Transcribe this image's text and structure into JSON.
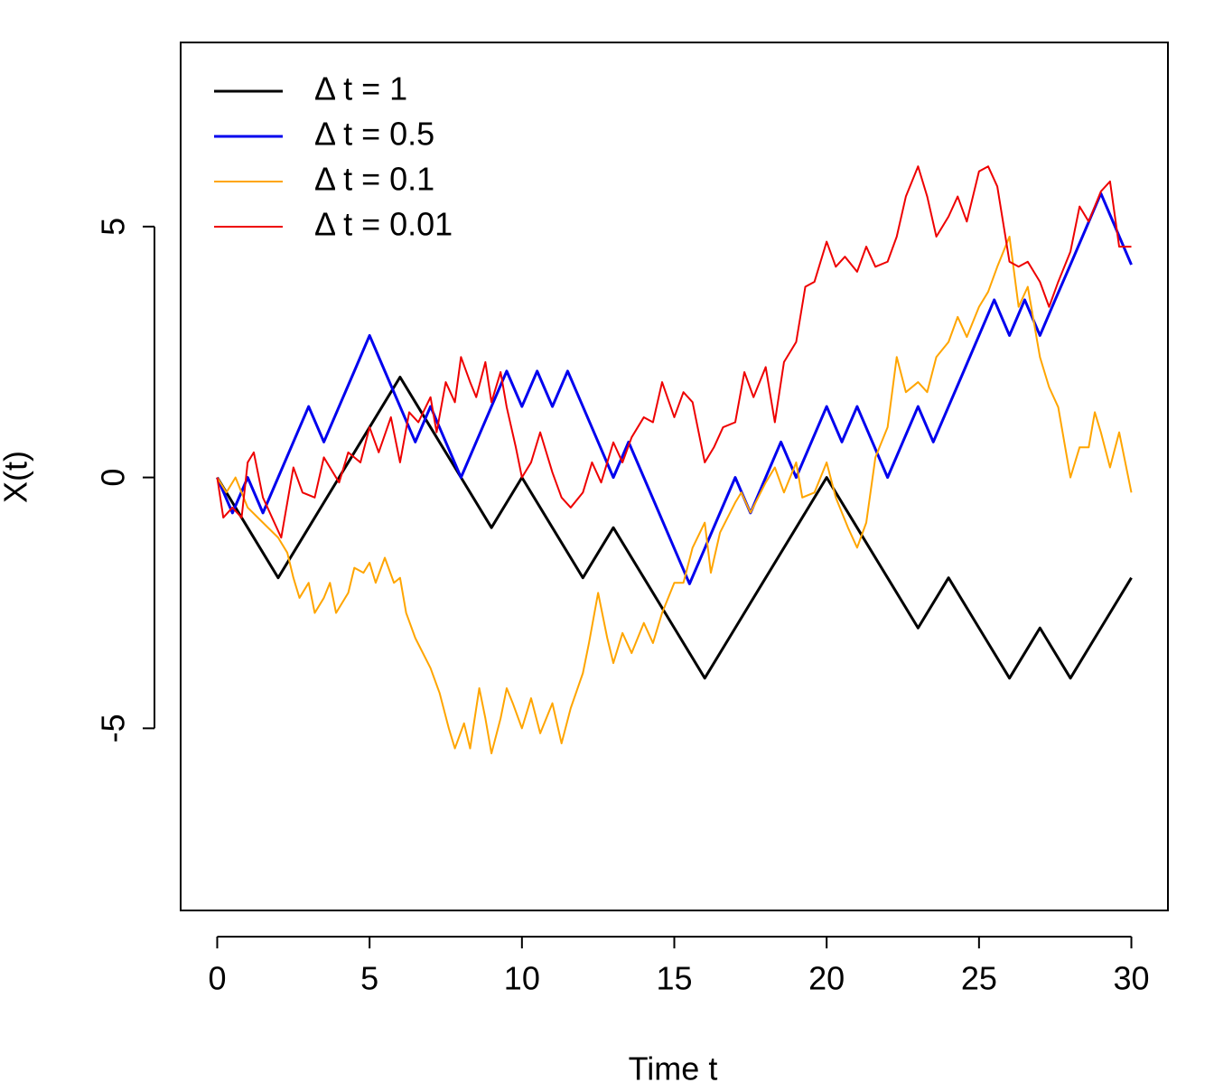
{
  "chart_data": {
    "type": "line",
    "xlabel": "Time t",
    "ylabel": "X(t)",
    "xlim": [
      -1.2,
      31.2
    ],
    "ylim": [
      -8.63,
      8.67
    ],
    "xticks": [
      0,
      5,
      10,
      15,
      20,
      25,
      30
    ],
    "yticks": [
      -5,
      0,
      5
    ],
    "legend": "top-left",
    "series": [
      {
        "name": "Δ t = 1",
        "color": "#000000",
        "x": [
          0,
          1,
          2,
          3,
          4,
          5,
          6,
          7,
          8,
          9,
          10,
          11,
          12,
          13,
          14,
          15,
          16,
          17,
          18,
          19,
          20,
          21,
          22,
          23,
          24,
          25,
          26,
          27,
          28,
          29,
          30
        ],
        "values": [
          0,
          -1,
          -2,
          -1,
          0,
          1,
          2,
          1,
          0,
          -1,
          0,
          -1,
          -2,
          -1,
          -2,
          -3,
          -4,
          -3,
          -2,
          -1,
          0,
          -1,
          -2,
          -3,
          -2,
          -3,
          -4,
          -3,
          -4,
          -3,
          -2
        ]
      },
      {
        "name": "Δ t = 0.5",
        "color": "#0000ee",
        "x": [
          0,
          0.5,
          1,
          1.5,
          2,
          2.5,
          3,
          3.5,
          4,
          4.5,
          5,
          5.5,
          6,
          6.5,
          7,
          7.5,
          8,
          8.5,
          9,
          9.5,
          10,
          10.5,
          11,
          11.5,
          12,
          12.5,
          13,
          13.5,
          14,
          14.5,
          15,
          15.5,
          16,
          16.5,
          17,
          17.5,
          18,
          18.5,
          19,
          19.5,
          20,
          20.5,
          21,
          21.5,
          22,
          22.5,
          23,
          23.5,
          24,
          24.5,
          25,
          25.5,
          26,
          26.5,
          27,
          27.5,
          28,
          28.5,
          29,
          29.5,
          30
        ],
        "values": [
          0,
          -0.707,
          0,
          -0.707,
          0,
          0.707,
          1.414,
          0.707,
          1.414,
          2.12,
          2.83,
          2.12,
          1.414,
          0.707,
          1.414,
          0.707,
          0,
          0.707,
          1.414,
          2.12,
          1.414,
          2.12,
          1.414,
          2.12,
          1.414,
          0.707,
          0,
          0.707,
          0,
          -0.707,
          -1.414,
          -2.12,
          -1.414,
          -0.707,
          0,
          -0.707,
          0,
          0.707,
          0,
          0.707,
          1.414,
          0.707,
          1.414,
          0.707,
          0,
          0.707,
          1.414,
          0.707,
          1.414,
          2.12,
          2.83,
          3.54,
          2.83,
          3.54,
          2.83,
          3.54,
          4.24,
          4.95,
          5.66,
          4.95,
          4.24
        ]
      },
      {
        "name": "Δ t = 0.1",
        "color": "#ffa500",
        "x": [
          0,
          0.3,
          0.6,
          1,
          1.5,
          2,
          2.3,
          2.5,
          2.7,
          3,
          3.2,
          3.5,
          3.7,
          3.9,
          4.3,
          4.5,
          4.8,
          5,
          5.2,
          5.5,
          5.8,
          6,
          6.2,
          6.5,
          7,
          7.3,
          7.6,
          7.8,
          8.1,
          8.3,
          8.6,
          8.8,
          9,
          9.3,
          9.5,
          9.7,
          10,
          10.3,
          10.6,
          11,
          11.3,
          11.6,
          12,
          12.2,
          12.5,
          12.8,
          13,
          13.3,
          13.6,
          14,
          14.3,
          14.6,
          15,
          15.3,
          15.6,
          16,
          16.2,
          16.5,
          17,
          17.2,
          17.5,
          18,
          18.3,
          18.6,
          19,
          19.2,
          19.6,
          20,
          20.3,
          20.7,
          21,
          21.3,
          21.6,
          22,
          22.3,
          22.6,
          23,
          23.3,
          23.6,
          24,
          24.3,
          24.6,
          25,
          25.3,
          25.6,
          26,
          26.3,
          26.6,
          27,
          27.3,
          27.6,
          28,
          28.3,
          28.6,
          28.8,
          29,
          29.3,
          29.6,
          29.8,
          30
        ],
        "values": [
          0,
          -0.3,
          0,
          -0.6,
          -0.9,
          -1.2,
          -1.5,
          -2.0,
          -2.4,
          -2.1,
          -2.7,
          -2.4,
          -2.1,
          -2.7,
          -2.3,
          -1.8,
          -1.9,
          -1.7,
          -2.1,
          -1.6,
          -2.1,
          -2.0,
          -2.7,
          -3.2,
          -3.8,
          -4.3,
          -5.0,
          -5.4,
          -4.9,
          -5.4,
          -4.2,
          -4.8,
          -5.5,
          -4.8,
          -4.2,
          -4.5,
          -5.0,
          -4.4,
          -5.1,
          -4.5,
          -5.3,
          -4.6,
          -3.9,
          -3.3,
          -2.3,
          -3.2,
          -3.7,
          -3.1,
          -3.5,
          -2.9,
          -3.3,
          -2.7,
          -2.1,
          -2.1,
          -1.4,
          -0.9,
          -1.9,
          -1.1,
          -0.5,
          -0.3,
          -0.7,
          -0.1,
          0.2,
          -0.3,
          0.3,
          -0.4,
          -0.3,
          0.3,
          -0.4,
          -1.0,
          -1.4,
          -0.9,
          0.4,
          1.0,
          2.4,
          1.7,
          1.9,
          1.7,
          2.4,
          2.7,
          3.2,
          2.8,
          3.4,
          3.7,
          4.2,
          4.8,
          3.4,
          3.8,
          2.4,
          1.8,
          1.4,
          0.0,
          0.6,
          0.6,
          1.3,
          0.9,
          0.2,
          0.9,
          0.3,
          -0.3
        ]
      },
      {
        "name": "Δ t = 0.01",
        "color": "#ee0000",
        "x": [
          0,
          0.2,
          0.5,
          0.8,
          1,
          1.2,
          1.5,
          1.8,
          2.1,
          2.3,
          2.5,
          2.8,
          3.2,
          3.5,
          4,
          4.3,
          4.7,
          5,
          5.3,
          5.7,
          6,
          6.3,
          6.6,
          7,
          7.2,
          7.5,
          7.8,
          8,
          8.3,
          8.5,
          8.8,
          9,
          9.3,
          9.5,
          9.8,
          10,
          10.3,
          10.6,
          11,
          11.3,
          11.6,
          12,
          12.3,
          12.6,
          13,
          13.3,
          13.6,
          14,
          14.3,
          14.6,
          15,
          15.3,
          15.6,
          16,
          16.3,
          16.6,
          17,
          17.3,
          17.6,
          18,
          18.3,
          18.6,
          19,
          19.3,
          19.6,
          20,
          20.3,
          20.6,
          21,
          21.3,
          21.6,
          22,
          22.3,
          22.6,
          23,
          23.3,
          23.6,
          24,
          24.3,
          24.6,
          25,
          25.3,
          25.6,
          26,
          26.3,
          26.6,
          27,
          27.3,
          27.6,
          28,
          28.3,
          28.6,
          29,
          29.3,
          29.6,
          30
        ],
        "values": [
          0,
          -0.8,
          -0.6,
          -0.8,
          0.3,
          0.5,
          -0.4,
          -0.8,
          -1.2,
          -0.5,
          0.2,
          -0.3,
          -0.4,
          0.4,
          -0.1,
          0.5,
          0.3,
          1.0,
          0.5,
          1.2,
          0.3,
          1.3,
          1.1,
          1.6,
          0.9,
          1.9,
          1.5,
          2.4,
          1.9,
          1.6,
          2.3,
          1.5,
          2.1,
          1.4,
          0.6,
          0,
          0.3,
          0.9,
          0.1,
          -0.4,
          -0.6,
          -0.3,
          0.3,
          -0.1,
          0.7,
          0.3,
          0.8,
          1.2,
          1.1,
          1.9,
          1.2,
          1.7,
          1.5,
          0.3,
          0.6,
          1.0,
          1.1,
          2.1,
          1.6,
          2.2,
          1.1,
          2.3,
          2.7,
          3.8,
          3.9,
          4.7,
          4.2,
          4.4,
          4.1,
          4.6,
          4.2,
          4.3,
          4.8,
          5.6,
          6.2,
          5.6,
          4.8,
          5.2,
          5.6,
          5.1,
          6.1,
          6.2,
          5.8,
          4.3,
          4.2,
          4.3,
          3.9,
          3.4,
          3.9,
          4.5,
          5.4,
          5.1,
          5.7,
          5.9,
          4.6,
          4.6
        ]
      }
    ]
  }
}
